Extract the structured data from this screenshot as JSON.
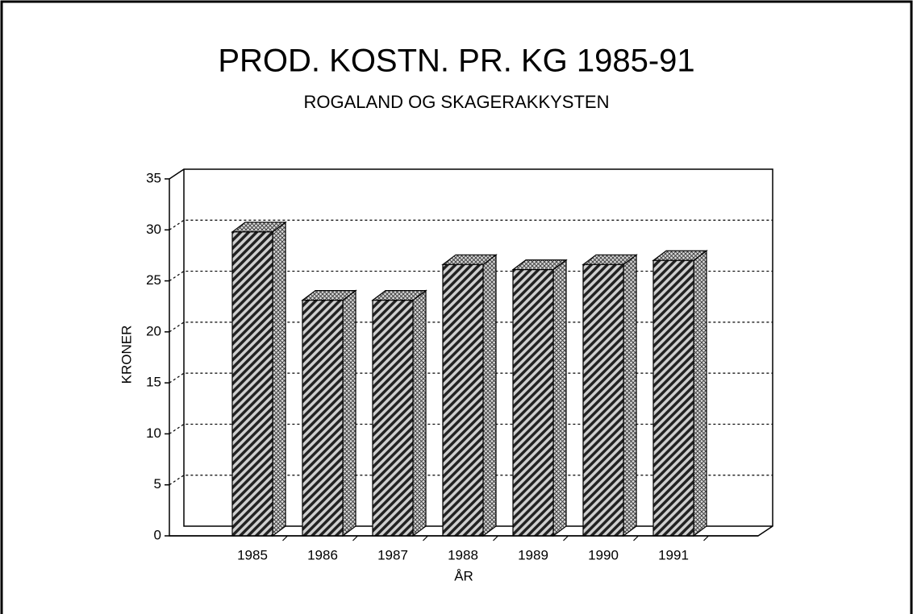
{
  "chart_data": {
    "type": "bar",
    "title": "PROD. KOSTN. PR. KG 1985-91",
    "subtitle": "ROGALAND OG SKAGERAKKYSTEN",
    "x_label": "ÅR",
    "y_label": "KRONER",
    "categories": [
      "1985",
      "1986",
      "1987",
      "1988",
      "1989",
      "1990",
      "1991"
    ],
    "values": [
      29.8,
      23.1,
      23.1,
      26.6,
      26.1,
      26.6,
      27.0
    ],
    "ylim": [
      0,
      35
    ],
    "yticks": [
      0,
      5,
      10,
      15,
      20,
      25,
      30,
      35
    ],
    "grid": true,
    "color": "#555555"
  }
}
